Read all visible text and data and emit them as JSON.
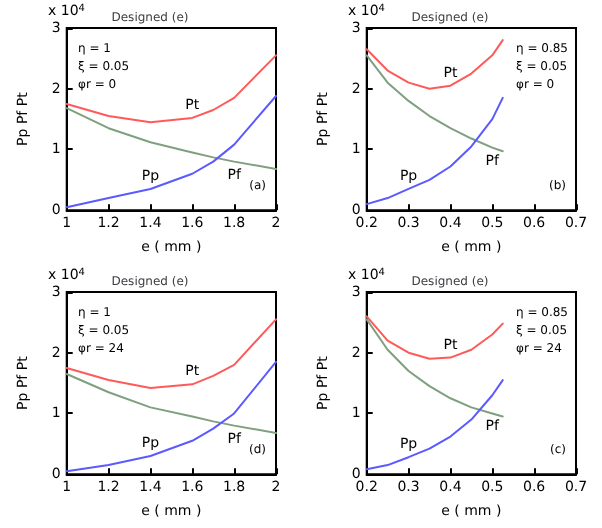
{
  "chart_data": [
    {
      "type": "line",
      "title": "Designed (e)",
      "xlabel": "e ( mm )",
      "ylabel": "Pp Pf Pt",
      "xlim": [
        1,
        2
      ],
      "xticks": [
        1,
        1.2,
        1.4,
        1.6,
        1.8,
        2
      ],
      "ylim": [
        0,
        3
      ],
      "yticks": [
        0,
        1,
        2,
        3
      ],
      "annotations": [
        "x 10$^{4}$",
        "η = 1",
        "ξ = 0.05",
        "φr = 0",
        "(a)"
      ],
      "x": [
        1,
        1.2,
        1.4,
        1.6,
        1.7,
        1.8,
        2
      ],
      "series": [
        {
          "name": "Pt",
          "color": "#ff5a5a",
          "values": [
            1.75,
            1.55,
            1.45,
            1.52,
            1.65,
            1.85,
            2.55
          ]
        },
        {
          "name": "Pf",
          "color": "#7fa07f",
          "values": [
            1.68,
            1.35,
            1.12,
            0.95,
            0.87,
            0.8,
            0.68
          ]
        },
        {
          "name": "Pp",
          "color": "#5a5aff",
          "values": [
            0.05,
            0.2,
            0.35,
            0.6,
            0.8,
            1.08,
            1.88
          ]
        }
      ]
    },
    {
      "type": "line",
      "title": "Designed (e)",
      "xlabel": "e ( mm )",
      "ylabel": "Pp Pf Pt",
      "xlim": [
        0.2,
        0.7
      ],
      "xticks": [
        0.2,
        0.3,
        0.4,
        0.5,
        0.6,
        0.7
      ],
      "ylim": [
        0,
        3
      ],
      "yticks": [
        0,
        1,
        2,
        3
      ],
      "annotations": [
        "x 10$^{4}$",
        "η = 0.85",
        "ξ = 0.05",
        "φr = 0",
        "(b)"
      ],
      "x": [
        0.2,
        0.25,
        0.3,
        0.35,
        0.4,
        0.45,
        0.5,
        0.525
      ],
      "series": [
        {
          "name": "Pt",
          "color": "#ff5a5a",
          "values": [
            2.65,
            2.3,
            2.1,
            2.0,
            2.05,
            2.25,
            2.55,
            2.8
          ]
        },
        {
          "name": "Pf",
          "color": "#7fa07f",
          "values": [
            2.55,
            2.1,
            1.8,
            1.55,
            1.35,
            1.18,
            1.03,
            0.97
          ]
        },
        {
          "name": "Pp",
          "color": "#5a5aff",
          "values": [
            0.1,
            0.2,
            0.35,
            0.5,
            0.72,
            1.05,
            1.5,
            1.85
          ]
        }
      ]
    },
    {
      "type": "line",
      "title": "Designed (e)",
      "xlabel": "e ( mm )",
      "ylabel": "Pp Pf Pt",
      "xlim": [
        1,
        2
      ],
      "xticks": [
        1,
        1.2,
        1.4,
        1.6,
        1.8,
        2
      ],
      "ylim": [
        0,
        3
      ],
      "yticks": [
        0,
        1,
        2,
        3
      ],
      "annotations": [
        "x 10$^{4}$",
        "η = 1",
        "ξ = 0.05",
        "φr = 24",
        "(d)"
      ],
      "x": [
        1,
        1.2,
        1.4,
        1.6,
        1.7,
        1.8,
        2
      ],
      "series": [
        {
          "name": "Pt",
          "color": "#ff5a5a",
          "values": [
            1.75,
            1.55,
            1.42,
            1.48,
            1.62,
            1.8,
            2.55
          ]
        },
        {
          "name": "Pf",
          "color": "#7fa07f",
          "values": [
            1.65,
            1.35,
            1.1,
            0.95,
            0.87,
            0.8,
            0.68
          ]
        },
        {
          "name": "Pp",
          "color": "#5a5aff",
          "values": [
            0.05,
            0.15,
            0.3,
            0.55,
            0.75,
            1.0,
            1.85
          ]
        }
      ]
    },
    {
      "type": "line",
      "title": "Designed (e)",
      "xlabel": "e ( mm )",
      "ylabel": "Pp Pf Pt",
      "xlim": [
        0.2,
        0.7
      ],
      "xticks": [
        0.2,
        0.3,
        0.4,
        0.5,
        0.6,
        0.7
      ],
      "ylim": [
        0,
        3
      ],
      "yticks": [
        0,
        1,
        2,
        3
      ],
      "annotations": [
        "x 10$^{4}$",
        "η = 0.85",
        "ξ = 0.05",
        "φr = 24",
        "(c)"
      ],
      "x": [
        0.2,
        0.25,
        0.3,
        0.35,
        0.4,
        0.45,
        0.5,
        0.525
      ],
      "series": [
        {
          "name": "Pt",
          "color": "#ff5a5a",
          "values": [
            2.6,
            2.2,
            2.0,
            1.9,
            1.92,
            2.05,
            2.3,
            2.48
          ]
        },
        {
          "name": "Pf",
          "color": "#7fa07f",
          "values": [
            2.55,
            2.05,
            1.7,
            1.45,
            1.25,
            1.1,
            1.0,
            0.95
          ]
        },
        {
          "name": "Pp",
          "color": "#5a5aff",
          "values": [
            0.08,
            0.15,
            0.28,
            0.42,
            0.62,
            0.9,
            1.3,
            1.55
          ]
        }
      ]
    }
  ]
}
